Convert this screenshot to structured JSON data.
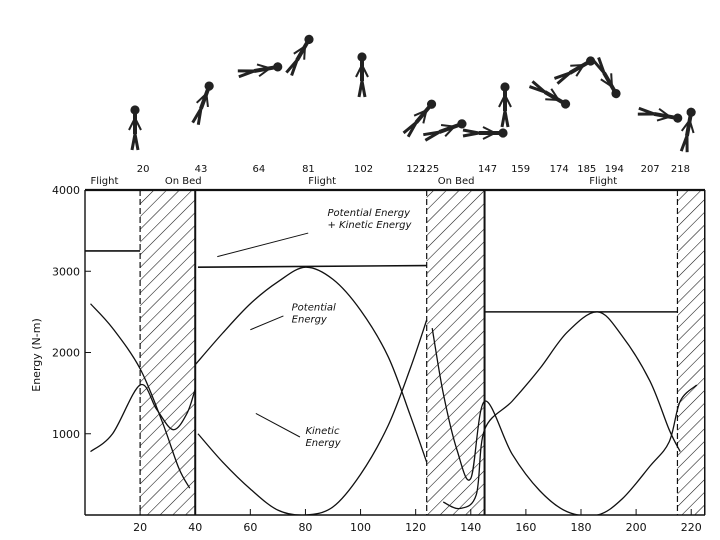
{
  "chart_data": {
    "type": "line",
    "ylabel": "Energy (N-m)",
    "xlim": [
      0,
      225
    ],
    "ylim": [
      0,
      4000
    ],
    "grid": false,
    "x_ticks": [
      20,
      40,
      60,
      80,
      100,
      120,
      140,
      160,
      180,
      200,
      220
    ],
    "y_ticks": [
      1000,
      2000,
      3000,
      4000
    ],
    "frame_numbers": [
      "20",
      "43",
      "64",
      "81",
      "102",
      "122",
      "125",
      "147",
      "159",
      "174",
      "185",
      "194",
      "207",
      "218"
    ],
    "phases": [
      {
        "label": "Flight",
        "x": 2
      },
      {
        "label": "On Bed",
        "x": 29
      },
      {
        "label": "Flight",
        "x": 81
      },
      {
        "label": "On Bed",
        "x": 128
      },
      {
        "label": "Flight",
        "x": 183
      }
    ],
    "bed_contact_intervals": [
      [
        20,
        40
      ],
      [
        124,
        145
      ],
      [
        215,
        225
      ]
    ],
    "series": [
      {
        "key": "total",
        "segments": [
          [
            [
              0,
              3250
            ],
            [
              20,
              3250
            ]
          ],
          [
            [
              41,
              3050
            ],
            [
              124,
              3070
            ]
          ],
          [
            [
              145,
              2500
            ],
            [
              215,
              2500
            ]
          ]
        ]
      },
      {
        "key": "potential",
        "segments": [
          [
            [
              2,
              2600
            ],
            [
              10,
              2300
            ],
            [
              20,
              1800
            ],
            [
              28,
              1150
            ],
            [
              34,
              580
            ],
            [
              38,
              330
            ]
          ],
          [
            [
              40,
              1850
            ],
            [
              50,
              2240
            ],
            [
              60,
              2600
            ],
            [
              70,
              2870
            ],
            [
              80,
              3050
            ],
            [
              90,
              2900
            ],
            [
              100,
              2520
            ],
            [
              110,
              1950
            ],
            [
              118,
              1230
            ],
            [
              124,
              650
            ]
          ],
          [
            [
              130,
              160
            ],
            [
              136,
              80
            ],
            [
              142,
              250
            ],
            [
              145,
              1050
            ],
            [
              155,
              1400
            ],
            [
              165,
              1800
            ],
            [
              175,
              2250
            ],
            [
              186,
              2500
            ],
            [
              195,
              2200
            ],
            [
              205,
              1650
            ],
            [
              212,
              1050
            ],
            [
              216,
              780
            ]
          ]
        ]
      },
      {
        "key": "kinetic",
        "segments": [
          [
            [
              2,
              780
            ],
            [
              10,
              1000
            ],
            [
              20,
              1600
            ],
            [
              26,
              1300
            ],
            [
              32,
              1050
            ],
            [
              37,
              1250
            ],
            [
              40,
              1550
            ]
          ],
          [
            [
              41,
              1000
            ],
            [
              50,
              650
            ],
            [
              60,
              320
            ],
            [
              70,
              60
            ],
            [
              80,
              0
            ],
            [
              90,
              100
            ],
            [
              100,
              500
            ],
            [
              110,
              1100
            ],
            [
              118,
              1800
            ],
            [
              124,
              2400
            ]
          ],
          [
            [
              126,
              2300
            ],
            [
              130,
              1500
            ],
            [
              135,
              800
            ],
            [
              140,
              450
            ],
            [
              145,
              1400
            ],
            [
              155,
              750
            ],
            [
              165,
              300
            ],
            [
              175,
              40
            ],
            [
              186,
              0
            ],
            [
              195,
              200
            ],
            [
              205,
              600
            ],
            [
              212,
              900
            ],
            [
              216,
              1400
            ],
            [
              222,
              1600
            ]
          ]
        ]
      }
    ],
    "annotations": [
      {
        "text": "Potential Energy",
        "x": 88,
        "y": 3680
      },
      {
        "text": "+ Kinetic Energy",
        "x": 88,
        "y": 3530
      },
      {
        "text": "Potential",
        "x": 75,
        "y": 2520
      },
      {
        "text": "Energy",
        "x": 75,
        "y": 2370
      },
      {
        "text": "Kinetic",
        "x": 80,
        "y": 1000
      },
      {
        "text": "Energy",
        "x": 80,
        "y": 850
      }
    ]
  }
}
